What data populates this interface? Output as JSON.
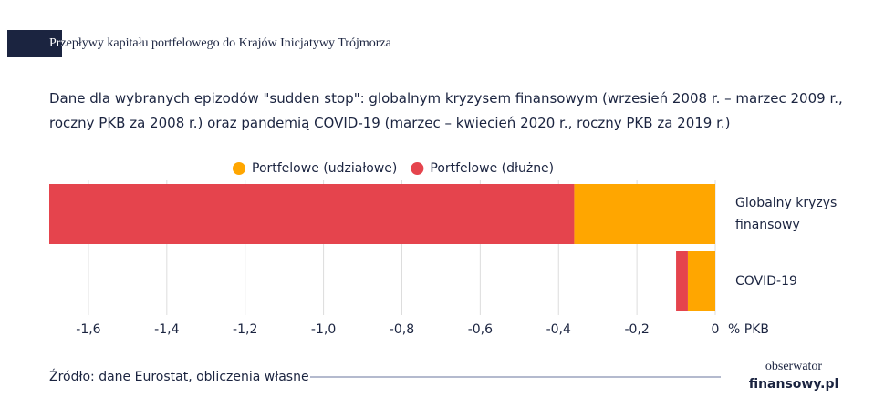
{
  "chart_data": {
    "type": "stacked-barh",
    "title": "Przepływy kapitału portfelowego do Krajów Inicjatywy Trójmorza",
    "subtitle": "Dane dla wybranych epizodów \"sudden stop\": globalnym kryzysem finansowym (wrzesień 2008 r. – marzec 2009 r., roczny PKB za 2008 r.) oraz pandemią COVID-19 (marzec – kwiecień 2020 r., roczny PKB za 2019 r.)",
    "categories": [
      "Globalny kryzys finansowy",
      "COVID-19"
    ],
    "series": [
      {
        "name": "Portfelowe (udziałowe)",
        "color": "#ffa600",
        "values": [
          -0.36,
          -0.07
        ]
      },
      {
        "name": "Portfelowe (dłużne)",
        "color": "#e5444d",
        "values": [
          -1.34,
          -0.03
        ]
      }
    ],
    "xlim": [
      -1.7,
      0
    ],
    "xticks": [
      {
        "value": -1.6,
        "label": "-1,6"
      },
      {
        "value": -1.4,
        "label": "-1,4"
      },
      {
        "value": -1.2,
        "label": "-1,2"
      },
      {
        "value": -1.0,
        "label": "-1,0"
      },
      {
        "value": -0.8,
        "label": "-0,8"
      },
      {
        "value": -0.6,
        "label": "-0,6"
      },
      {
        "value": -0.4,
        "label": "-0,4"
      },
      {
        "value": -0.2,
        "label": "-0,2"
      },
      0
    ],
    "xlabel": "% PKB",
    "grid": true,
    "legend": "top",
    "source": "Źródło: dane Eurostat, obliczenia własne",
    "logo": [
      "obserwator",
      "finansowy.pl"
    ]
  }
}
